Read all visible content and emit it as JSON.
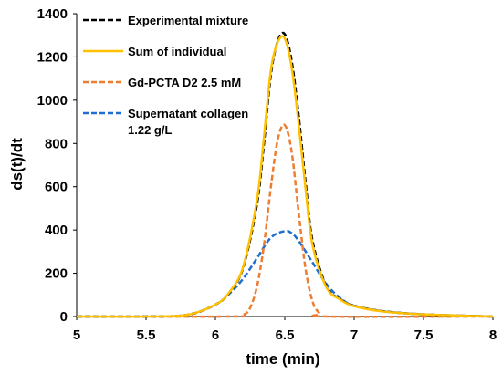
{
  "chart_data": {
    "type": "line",
    "title": "",
    "xlabel": "time (min)",
    "ylabel": "ds(t)/dt",
    "xlim": [
      5,
      8
    ],
    "ylim": [
      0,
      1400
    ],
    "xticks": [
      "5",
      "5.5",
      "6",
      "6.5",
      "7",
      "7.5",
      "8"
    ],
    "yticks": [
      "0",
      "200",
      "400",
      "600",
      "800",
      "1000",
      "1200",
      "1400"
    ],
    "grid": false,
    "legend_position": "top-left",
    "series": [
      {
        "name": "Experimental mixture",
        "color": "#000000",
        "style": "dashed",
        "x": [
          5.0,
          5.5,
          5.8,
          6.0,
          6.1,
          6.2,
          6.3,
          6.35,
          6.4,
          6.45,
          6.5,
          6.55,
          6.6,
          6.65,
          6.7,
          6.8,
          6.9,
          7.0,
          7.2,
          7.5,
          8.0
        ],
        "y": [
          0,
          0,
          8,
          55,
          110,
          225,
          520,
          800,
          1120,
          1275,
          1305,
          1180,
          930,
          620,
          350,
          140,
          80,
          50,
          25,
          10,
          0
        ]
      },
      {
        "name": "Sum of individual",
        "color": "#FFC000",
        "style": "solid",
        "x": [
          5.0,
          5.5,
          5.8,
          6.0,
          6.1,
          6.2,
          6.3,
          6.35,
          6.4,
          6.45,
          6.5,
          6.55,
          6.6,
          6.65,
          6.7,
          6.8,
          6.9,
          7.0,
          7.2,
          7.5,
          8.0
        ],
        "y": [
          0,
          0,
          8,
          55,
          112,
          230,
          540,
          830,
          1140,
          1270,
          1285,
          1150,
          890,
          590,
          330,
          135,
          78,
          48,
          24,
          10,
          0
        ]
      },
      {
        "name": "Gd-PCTA D2 2.5 mM",
        "color": "#ED7D31",
        "style": "dashed",
        "x": [
          5.0,
          6.1,
          6.2,
          6.25,
          6.3,
          6.35,
          6.4,
          6.45,
          6.5,
          6.55,
          6.6,
          6.65,
          6.7,
          6.75,
          6.8,
          8.0
        ],
        "y": [
          0,
          0,
          8,
          40,
          140,
          330,
          600,
          820,
          885,
          760,
          480,
          220,
          70,
          15,
          0,
          0
        ]
      },
      {
        "name": "Supernatant collagen 1.22 g/L",
        "color": "#1F6FD0",
        "style": "dashed",
        "x": [
          5.0,
          5.5,
          5.8,
          6.0,
          6.1,
          6.2,
          6.3,
          6.4,
          6.5,
          6.55,
          6.6,
          6.7,
          6.8,
          6.9,
          7.0,
          7.2,
          7.5,
          8.0
        ],
        "y": [
          0,
          0,
          8,
          55,
          105,
          175,
          270,
          365,
          395,
          385,
          350,
          250,
          150,
          85,
          50,
          25,
          10,
          0
        ]
      }
    ]
  }
}
